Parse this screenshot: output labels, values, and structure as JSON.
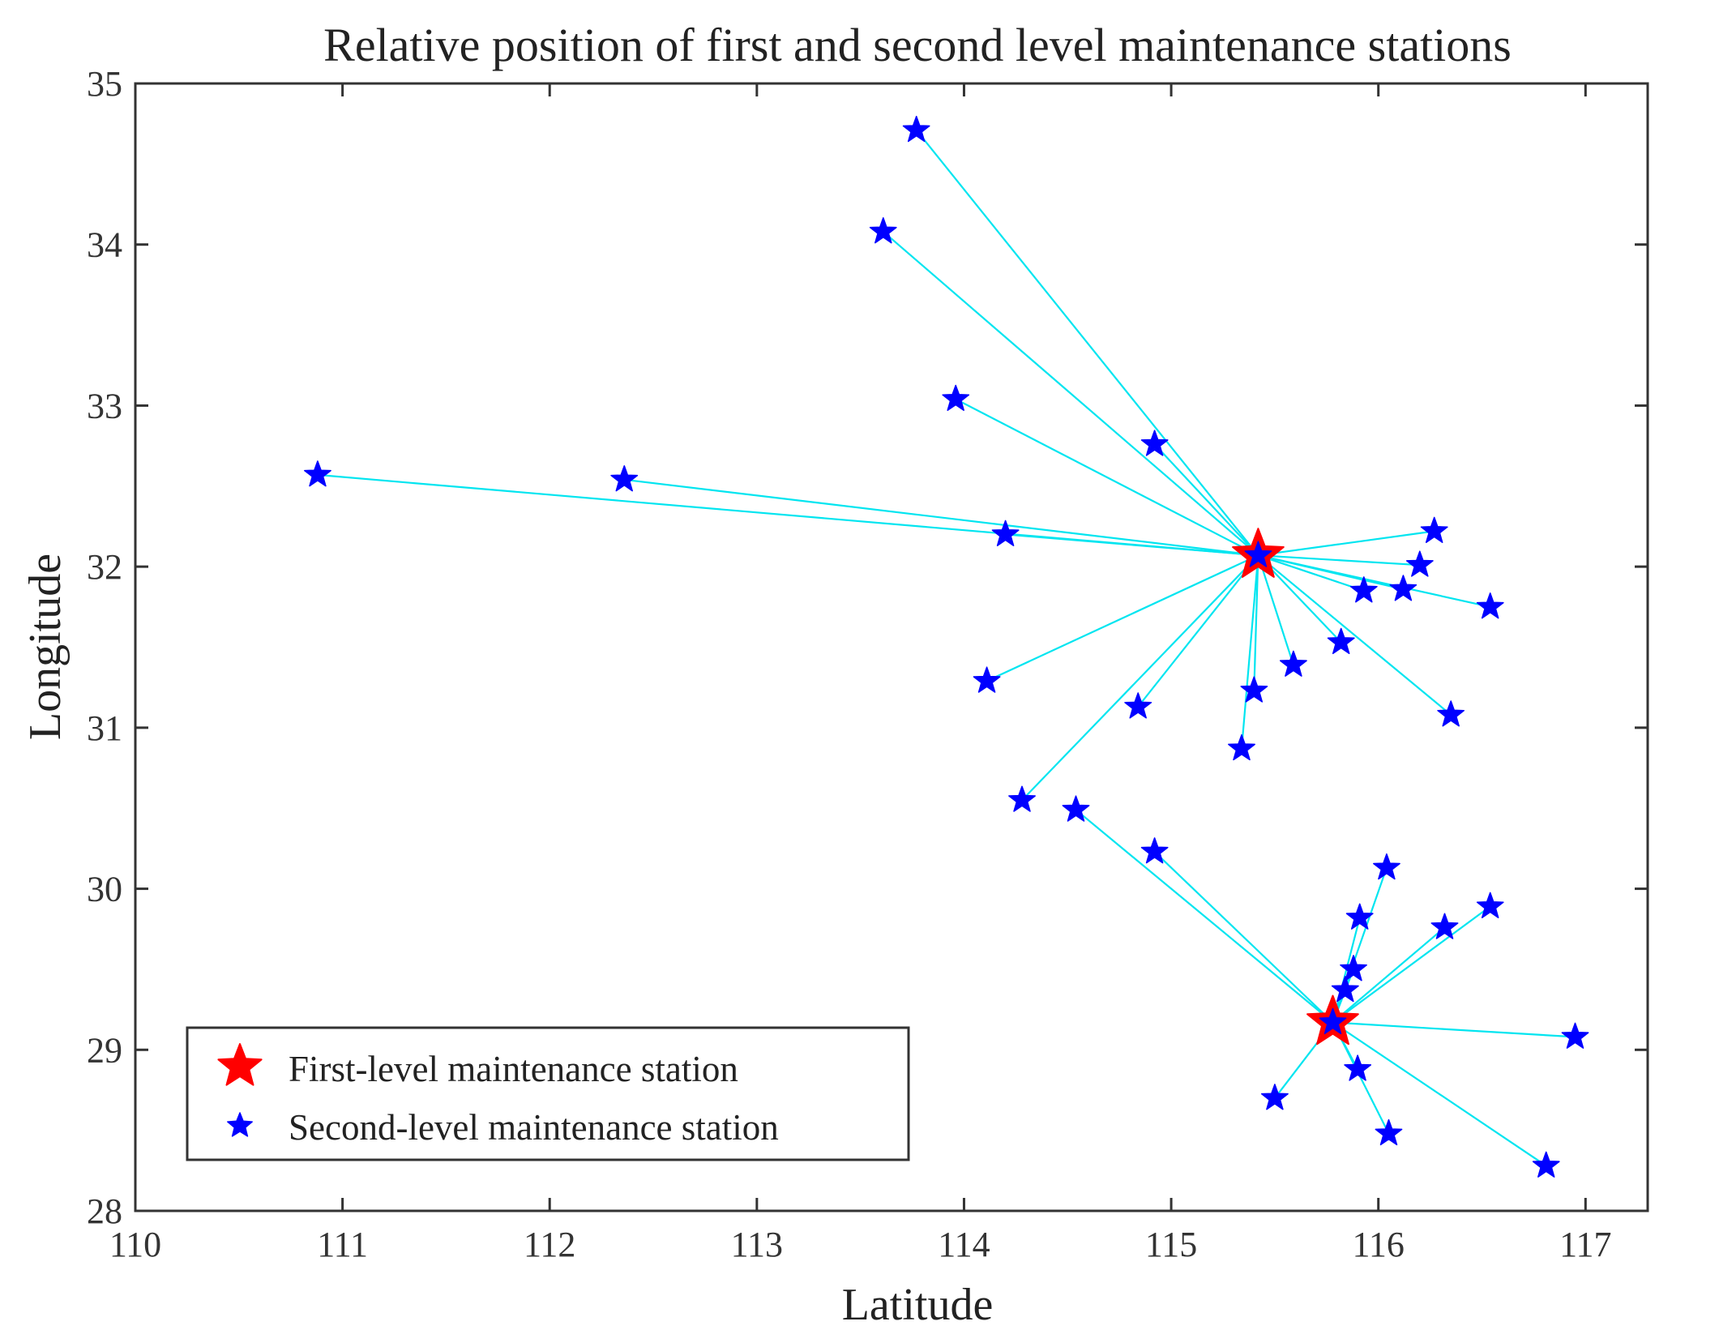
{
  "chart_data": {
    "type": "scatter",
    "title": "Relative position of first and second level maintenance stations",
    "xlabel": "Latitude",
    "ylabel": "Longitude",
    "xlim": [
      110,
      117.3
    ],
    "ylim": [
      28,
      35
    ],
    "xticks": [
      110,
      111,
      112,
      113,
      114,
      115,
      116,
      117
    ],
    "yticks": [
      28,
      29,
      30,
      31,
      32,
      33,
      34,
      35
    ],
    "grid": false,
    "legend_position": "bottom-left",
    "colors": {
      "first_level": "#ff0000",
      "second_level": "#0000ff",
      "connection": "#00e5f0",
      "axis": "#333333"
    },
    "series": [
      {
        "name": "First-level maintenance station",
        "marker": "large-red-star",
        "points": [
          {
            "x": 115.42,
            "y": 32.07
          },
          {
            "x": 115.78,
            "y": 29.17
          }
        ]
      },
      {
        "name": "Second-level maintenance station",
        "marker": "blue-star",
        "points": [
          {
            "x": 113.77,
            "y": 34.71,
            "hub": 0
          },
          {
            "x": 113.61,
            "y": 34.08,
            "hub": 0
          },
          {
            "x": 113.96,
            "y": 33.04,
            "hub": 0
          },
          {
            "x": 114.92,
            "y": 32.76,
            "hub": 0
          },
          {
            "x": 110.88,
            "y": 32.57,
            "hub": 0
          },
          {
            "x": 112.36,
            "y": 32.54,
            "hub": 0
          },
          {
            "x": 114.2,
            "y": 32.2,
            "hub": 0
          },
          {
            "x": 116.27,
            "y": 32.22,
            "hub": 0
          },
          {
            "x": 116.2,
            "y": 32.01,
            "hub": 0
          },
          {
            "x": 115.93,
            "y": 31.85,
            "hub": 0
          },
          {
            "x": 116.12,
            "y": 31.86,
            "hub": 0
          },
          {
            "x": 116.54,
            "y": 31.75,
            "hub": 0
          },
          {
            "x": 115.82,
            "y": 31.53,
            "hub": 0
          },
          {
            "x": 115.59,
            "y": 31.39,
            "hub": 0
          },
          {
            "x": 114.11,
            "y": 31.29,
            "hub": 0
          },
          {
            "x": 115.4,
            "y": 31.23,
            "hub": 0
          },
          {
            "x": 114.84,
            "y": 31.13,
            "hub": 0
          },
          {
            "x": 116.35,
            "y": 31.08,
            "hub": 0
          },
          {
            "x": 115.34,
            "y": 30.87,
            "hub": 0
          },
          {
            "x": 114.28,
            "y": 30.55,
            "hub": 0
          },
          {
            "x": 114.54,
            "y": 30.49,
            "hub": 1
          },
          {
            "x": 114.92,
            "y": 30.23,
            "hub": 1
          },
          {
            "x": 116.04,
            "y": 30.13,
            "hub": 1
          },
          {
            "x": 116.54,
            "y": 29.89,
            "hub": 1
          },
          {
            "x": 115.91,
            "y": 29.82,
            "hub": 1
          },
          {
            "x": 116.32,
            "y": 29.76,
            "hub": 1
          },
          {
            "x": 115.88,
            "y": 29.5,
            "hub": 1
          },
          {
            "x": 115.84,
            "y": 29.37,
            "hub": 1
          },
          {
            "x": 116.95,
            "y": 29.08,
            "hub": 1
          },
          {
            "x": 115.9,
            "y": 28.88,
            "hub": 1
          },
          {
            "x": 115.5,
            "y": 28.7,
            "hub": 1
          },
          {
            "x": 116.05,
            "y": 28.48,
            "hub": 1
          },
          {
            "x": 116.81,
            "y": 28.28,
            "hub": 1
          }
        ]
      }
    ]
  }
}
